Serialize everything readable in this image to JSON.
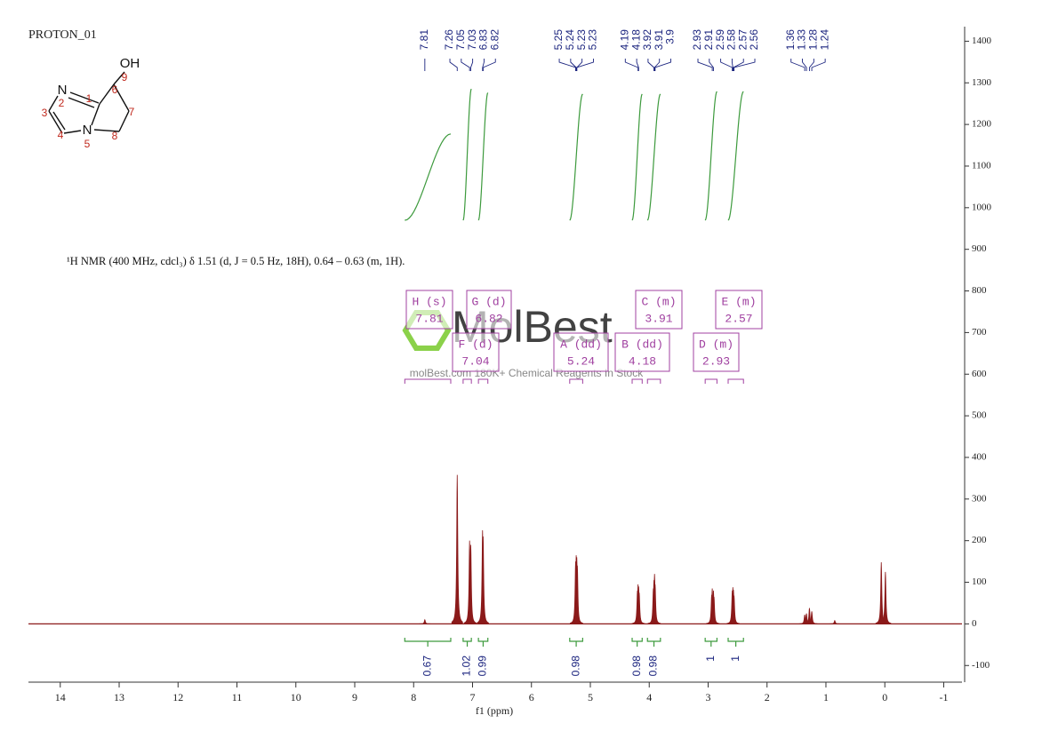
{
  "chart_data": {
    "type": "nmr",
    "title": "PROTON_01",
    "description": "¹H NMR (400 MHz, cdcl₃) δ 1.51 (d, J = 0.5 Hz, 18H), 0.64 – 0.63 (m, 1H).",
    "xlabel": "f1 (ppm)",
    "xlim": [
      14.54,
      -1.31
    ],
    "ylim": [
      -140,
      1435
    ],
    "xticks": [
      14,
      13,
      12,
      11,
      10,
      9,
      8,
      7,
      6,
      5,
      4,
      3,
      2,
      1,
      0,
      -1
    ],
    "yticks": [
      -100,
      0,
      100,
      200,
      300,
      400,
      500,
      600,
      700,
      800,
      900,
      1000,
      1100,
      1200,
      1300,
      1400
    ],
    "color": "#8b1a1a",
    "peaks": {
      "x": [
        7.81,
        7.26,
        7.05,
        7.03,
        6.83,
        6.82,
        5.25,
        5.24,
        5.23,
        5.22,
        4.2,
        4.19,
        4.18,
        4.17,
        3.93,
        3.92,
        3.91,
        3.9,
        2.94,
        2.93,
        2.91,
        2.9,
        2.59,
        2.58,
        2.57,
        2.56,
        1.36,
        1.33,
        1.28,
        1.24,
        0.85,
        0.06,
        -0.01
      ],
      "values": [
        10,
        358,
        200,
        190,
        225,
        210,
        150,
        165,
        160,
        140,
        80,
        95,
        90,
        75,
        85,
        105,
        120,
        95,
        70,
        85,
        80,
        65,
        80,
        88,
        82,
        68,
        22,
        25,
        38,
        30,
        8,
        148,
        125
      ]
    },
    "peak_labels": [
      7.81,
      7.26,
      7.05,
      7.03,
      6.83,
      6.82,
      5.25,
      5.24,
      5.23,
      5.23,
      4.19,
      4.18,
      3.92,
      3.91,
      3.9,
      2.93,
      2.91,
      2.59,
      2.58,
      2.57,
      2.56,
      1.36,
      1.33,
      1.28,
      1.24
    ],
    "integrals": [
      {
        "value": 0.67,
        "from": 8.15,
        "to": 7.37
      },
      {
        "value": 1.02,
        "from": 7.16,
        "to": 7.02
      },
      {
        "value": 0.99,
        "from": 6.9,
        "to": 6.74
      },
      {
        "value": 0.98,
        "from": 5.35,
        "to": 5.13
      },
      {
        "value": 0.98,
        "from": 4.29,
        "to": 4.12
      },
      {
        "value": 0.98,
        "from": 4.03,
        "to": 3.81
      },
      {
        "value": 1.0,
        "from": 3.05,
        "to": 2.85
      },
      {
        "value": 1.0,
        "from": 2.66,
        "to": 2.4
      }
    ],
    "multiplets": [
      {
        "label": "H (s)",
        "shift": 7.81,
        "range": [
          8.15,
          7.37
        ]
      },
      {
        "label": "G (d)",
        "shift": 6.82,
        "range": [
          6.9,
          6.74
        ]
      },
      {
        "label": "C (m)",
        "shift": 3.91,
        "range": [
          4.03,
          3.81
        ]
      },
      {
        "label": "E (m)",
        "shift": 2.57,
        "range": [
          2.66,
          2.4
        ]
      },
      {
        "label": "F (d)",
        "shift": 7.04,
        "range": [
          7.16,
          7.02
        ]
      },
      {
        "label": "A (dd)",
        "shift": 5.24,
        "range": [
          5.35,
          5.13
        ]
      },
      {
        "label": "B (dd)",
        "shift": 4.18,
        "range": [
          4.29,
          4.12
        ]
      },
      {
        "label": "D (m)",
        "shift": 2.93,
        "range": [
          3.05,
          2.85
        ]
      }
    ],
    "structure": {
      "labels": [
        "OH",
        "9",
        "6",
        "N",
        "2",
        "1",
        "7",
        "3",
        "4",
        "N",
        "5",
        "8"
      ]
    },
    "watermark": {
      "brand": "MolBest",
      "tagline": "molBest.com 180K+ Chemical Reagents In Stock"
    }
  }
}
